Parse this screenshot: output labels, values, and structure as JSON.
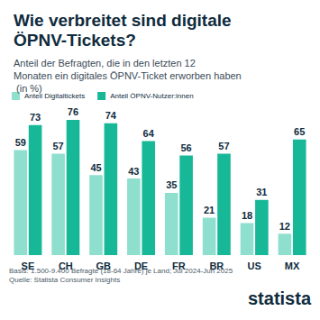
{
  "chart_data": {
    "type": "bar",
    "title": "Wie verbreitet sind digitale ÖPNV-Tickets?",
    "subtitle": "Anteil der Befragten, die in den letzten 12 Monaten ein digitales ÖPNV-Ticket erworben haben (in %)",
    "categories": [
      "SE",
      "CH",
      "GB",
      "DE",
      "FR",
      "BR",
      "US",
      "MX"
    ],
    "series": [
      {
        "name": "Anteil Digitaltickets",
        "color": "#8fdfce",
        "values": [
          59,
          57,
          45,
          43,
          35,
          21,
          18,
          12
        ]
      },
      {
        "name": "Anteil ÖPNV-Nutzer:innen",
        "color": "#17b897",
        "values": [
          73,
          76,
          74,
          64,
          56,
          57,
          31,
          65
        ]
      }
    ],
    "ylim": [
      0,
      80
    ],
    "grid": false,
    "legend": "top-left",
    "data_labels": true,
    "tick_labels": "x",
    "notes": [
      "Basis: 1.500-9.400 Befragte (18-64 Jahre) je Land; Jul 2024-Jun 2025",
      "Quelle: Statista Consumer Insights"
    ],
    "logo": "statista"
  }
}
